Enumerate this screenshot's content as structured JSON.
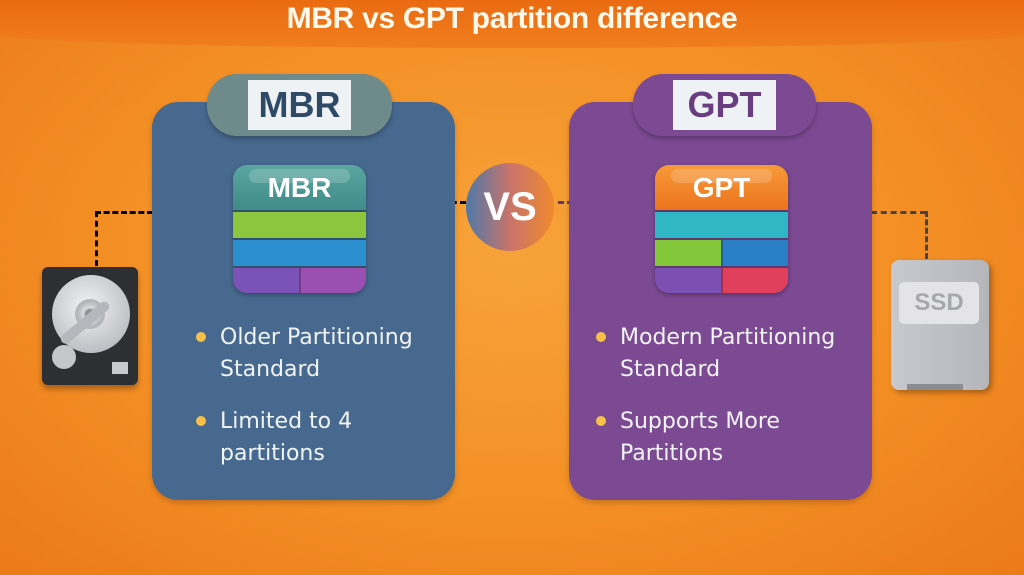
{
  "title": "MBR vs GPT partition difference",
  "vs_label": "VS",
  "colors": {
    "background": "#f38f25",
    "mbr_panel": "#47698f",
    "gpt_panel": "#7c4a93",
    "bullet_dot": "#f6c04a"
  },
  "left": {
    "tab_label": "MBR",
    "disk_label": "MBR",
    "device_icon": "hard-disk-drive-icon",
    "disk_rows": [
      [
        "#8cc63e"
      ],
      [
        "#2b8fd0"
      ],
      [
        "#7b52b7",
        "#9b4fb0"
      ]
    ],
    "bullets": [
      "Older Partitioning Standard",
      "Limited to 4 partitions"
    ]
  },
  "right": {
    "tab_label": "GPT",
    "disk_label": "GPT",
    "device_icon": "ssd-icon",
    "device_label": "SSD",
    "disk_rows": [
      [
        "#2fb7c6"
      ],
      [
        "#83c73b",
        "#2a7fc6"
      ],
      [
        "#7b50b2",
        "#e0405c"
      ]
    ],
    "bullets": [
      "Modern Partitioning Standard",
      "Supports More Partitions"
    ]
  }
}
